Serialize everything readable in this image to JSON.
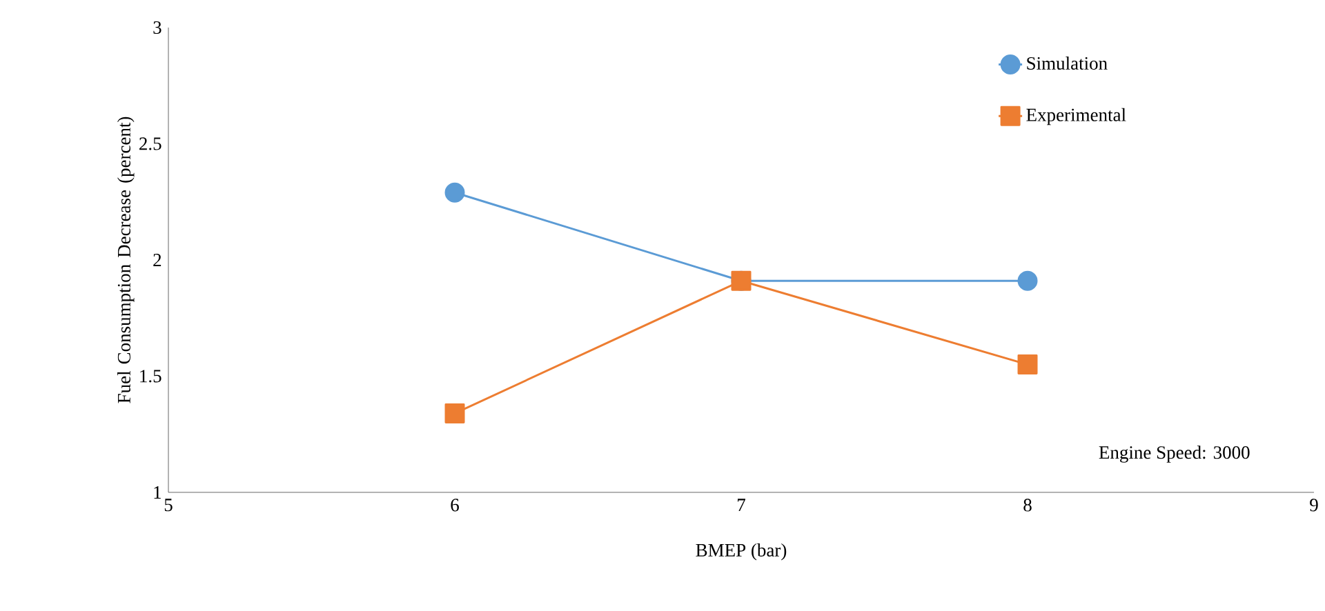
{
  "chart_data": {
    "type": "line",
    "xlabel": "BMEP (bar)",
    "ylabel": "Fuel Consumption Decrease (percent)",
    "x": [
      6,
      7,
      8
    ],
    "series": [
      {
        "name": "Simulation",
        "color": "#5b9bd5",
        "marker": "circle",
        "values": [
          2.29,
          1.91,
          1.91
        ]
      },
      {
        "name": "Experimental",
        "color": "#ed7d31",
        "marker": "square",
        "values": [
          1.34,
          1.91,
          1.55
        ]
      }
    ],
    "xlim": [
      5,
      9
    ],
    "ylim": [
      1,
      3
    ],
    "xticks": [
      5,
      6,
      7,
      8,
      9
    ],
    "yticks": [
      1,
      1.5,
      2,
      2.5,
      3
    ],
    "grid": false,
    "legend": "top right",
    "line_style": "solid",
    "annotations": [
      "Engine Speed: 3000"
    ]
  }
}
